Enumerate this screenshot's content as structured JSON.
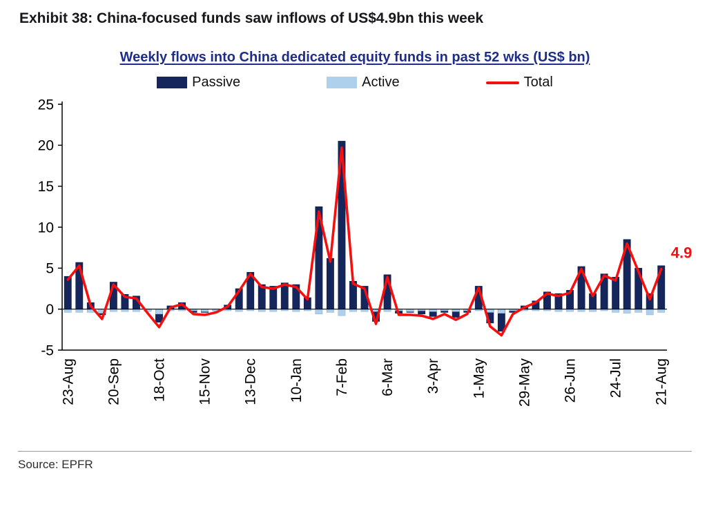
{
  "exhibit_title": "Exhibit 38: China-focused funds saw inflows of US$4.9bn this week",
  "chart_title": "Weekly flows into China dedicated equity funds in past 52 wks (US$ bn)",
  "source_note": "Source: EPFR",
  "colors": {
    "passive": "#14265c",
    "active": "#aed0ec",
    "total": "#f50f0f",
    "title": "#1e2d87"
  },
  "legend": [
    {
      "label": "Passive"
    },
    {
      "label": "Active"
    },
    {
      "label": "Total"
    }
  ],
  "chart_data": {
    "type": "bar",
    "title": "Weekly flows into China dedicated equity funds in past 52 wks (US$ bn)",
    "xlabel": "",
    "ylabel": "",
    "ylim": [
      -5,
      25
    ],
    "yticks": [
      -5,
      0,
      5,
      10,
      15,
      20,
      25
    ],
    "grid": false,
    "legend_position": "top",
    "x_tick_labels": [
      "23-Aug",
      "20-Sep",
      "18-Oct",
      "15-Nov",
      "13-Dec",
      "10-Jan",
      "7-Feb",
      "6-Mar",
      "3-Apr",
      "1-May",
      "29-May",
      "26-Jun",
      "24-Jul",
      "21-Aug"
    ],
    "x_tick_every": 4,
    "n_points": 53,
    "series": [
      {
        "name": "Passive",
        "type": "bar",
        "values": [
          4.0,
          5.7,
          0.8,
          -0.7,
          3.3,
          1.8,
          1.6,
          -0.2,
          -1.6,
          0.4,
          0.8,
          -0.4,
          -0.4,
          -0.2,
          0.5,
          2.5,
          4.5,
          3.0,
          2.8,
          3.2,
          3.0,
          1.4,
          12.5,
          6.2,
          20.5,
          3.4,
          2.8,
          -1.5,
          4.2,
          -0.5,
          -0.4,
          -0.6,
          -0.9,
          -0.4,
          -1.0,
          -0.4,
          2.8,
          -1.7,
          -2.7,
          -0.4,
          0.4,
          1.0,
          2.1,
          1.9,
          2.3,
          5.2,
          1.9,
          4.3,
          3.9,
          8.5,
          5.0,
          1.9,
          5.3
        ]
      },
      {
        "name": "Active",
        "type": "bar",
        "values": [
          -0.4,
          -0.4,
          -0.4,
          -0.5,
          -0.3,
          -0.3,
          -0.3,
          -0.3,
          -0.6,
          -0.2,
          -0.2,
          -0.2,
          -0.3,
          -0.2,
          -0.2,
          -0.3,
          -0.2,
          -0.3,
          -0.3,
          -0.2,
          -0.3,
          -0.2,
          -0.6,
          -0.4,
          -0.8,
          -0.3,
          -0.3,
          -0.3,
          -0.3,
          -0.2,
          -0.3,
          -0.2,
          -0.3,
          -0.2,
          -0.3,
          -0.2,
          -0.2,
          -0.4,
          -0.5,
          -0.2,
          -0.2,
          -0.2,
          -0.2,
          -0.3,
          -0.3,
          -0.3,
          -0.3,
          -0.2,
          -0.4,
          -0.5,
          -0.4,
          -0.7,
          -0.4
        ]
      },
      {
        "name": "Total",
        "type": "line",
        "values": [
          3.6,
          5.3,
          0.4,
          -1.2,
          3.0,
          1.5,
          1.3,
          -0.5,
          -2.2,
          0.2,
          0.6,
          -0.6,
          -0.7,
          -0.4,
          0.3,
          2.2,
          4.3,
          2.7,
          2.5,
          3.0,
          2.7,
          1.2,
          11.9,
          5.8,
          19.7,
          3.1,
          2.5,
          -1.8,
          3.9,
          -0.7,
          -0.7,
          -0.8,
          -1.2,
          -0.6,
          -1.3,
          -0.6,
          2.6,
          -2.1,
          -3.2,
          -0.6,
          0.2,
          0.8,
          1.9,
          1.6,
          2.0,
          4.9,
          1.6,
          4.1,
          3.5,
          8.0,
          4.6,
          1.2,
          4.9
        ]
      }
    ],
    "annotation": {
      "text": "4.9",
      "value": 4.9
    }
  }
}
